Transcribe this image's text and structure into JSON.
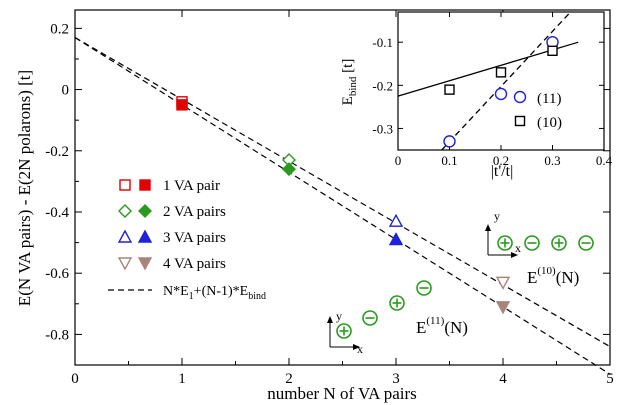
{
  "chart_data": [
    {
      "type": "scatter",
      "xlabel": "number N of VA pairs",
      "ylabel": "E(N VA pairs) - E(2N polarons) [t]",
      "xlim": [
        0,
        5
      ],
      "ylim": [
        -0.9,
        0.26
      ],
      "xticks": [
        0,
        1,
        2,
        3,
        4,
        5
      ],
      "yticks": [
        0.2,
        0,
        -0.2,
        -0.4,
        -0.6,
        -0.8
      ],
      "xtick_labels": [
        "0",
        "1",
        "2",
        "3",
        "4",
        "5"
      ],
      "ytick_labels": [
        "0.2",
        "0",
        "-0.2",
        "-0.4",
        "-0.6",
        "-0.8"
      ],
      "grid": false,
      "legend_position": "center-left",
      "series": [
        {
          "name": "1 VA pair",
          "color": "#e00000",
          "marker": "square",
          "open": {
            "x": 1,
            "y": -0.04
          },
          "filled": {
            "x": 1,
            "y": -0.05
          }
        },
        {
          "name": "2 VA pairs",
          "color": "#2a9a1f",
          "marker": "diamond",
          "open": {
            "x": 2,
            "y": -0.23
          },
          "filled": {
            "x": 2,
            "y": -0.26
          }
        },
        {
          "name": "3 VA pairs",
          "color": "#1f22d8",
          "marker": "triangle-up",
          "open": {
            "x": 3,
            "y": -0.43
          },
          "filled": {
            "x": 3,
            "y": -0.49
          }
        },
        {
          "name": "4 VA pairs",
          "color": "#a8857b",
          "marker": "triangle-down",
          "open": {
            "x": 4,
            "y": -0.63
          },
          "filled": {
            "x": 4,
            "y": -0.71
          }
        }
      ],
      "fit_lines": [
        {
          "x": [
            0,
            5
          ],
          "y": [
            0.17,
            -0.84
          ]
        },
        {
          "x": [
            0,
            5
          ],
          "y": [
            0.17,
            -0.93
          ]
        }
      ],
      "legend_line": {
        "text": "N*E",
        "sub1": "1",
        "mid": "+(N-1)*E",
        "sub2": "bind"
      },
      "annotations": [
        {
          "id": "e11",
          "base": "E",
          "sup": "(11)",
          "tail": "(N)",
          "axes": {
            "y": "y",
            "x": "x"
          },
          "symbols": [
            "plus",
            "minus",
            "plus",
            "minus"
          ],
          "symbol_color": "#2a9a1f"
        },
        {
          "id": "e10",
          "base": "E",
          "sup": "(10)",
          "tail": "(N)",
          "axes": {
            "y": "y",
            "x": "x"
          },
          "symbols": [
            "plus",
            "minus",
            "plus",
            "minus"
          ],
          "symbol_color": "#2a9a1f"
        }
      ]
    },
    {
      "type": "scatter",
      "xlabel": "|t'/t|",
      "ylabel": "E",
      "ylabel_sub": "bind",
      "ylabel_unit": " [t]",
      "xlim": [
        0,
        0.4
      ],
      "ylim": [
        -0.35,
        -0.03
      ],
      "xticks": [
        0,
        0.1,
        0.2,
        0.3,
        0.4
      ],
      "yticks": [
        -0.1,
        -0.2,
        -0.3
      ],
      "xtick_labels": [
        "0",
        "0.1",
        "0.2",
        "0.3",
        "0.4"
      ],
      "ytick_labels": [
        "-0.1",
        "-0.2",
        "-0.3"
      ],
      "grid": false,
      "legend_position": "bottom-right",
      "series": [
        {
          "name": "(11)",
          "color": "#1f22d8",
          "marker": "circle",
          "line": "dashed",
          "x": [
            0.1,
            0.2,
            0.3
          ],
          "y": [
            -0.33,
            -0.22,
            -0.1
          ],
          "fit": {
            "x": [
              0.085,
              0.335
            ],
            "y": [
              -0.35,
              -0.03
            ]
          }
        },
        {
          "name": "(10)",
          "color": "#000000",
          "marker": "square",
          "line": "solid",
          "x": [
            0.1,
            0.2,
            0.3
          ],
          "y": [
            -0.21,
            -0.17,
            -0.12
          ],
          "fit": {
            "x": [
              0,
              0.35
            ],
            "y": [
              -0.225,
              -0.1
            ]
          }
        }
      ]
    }
  ]
}
